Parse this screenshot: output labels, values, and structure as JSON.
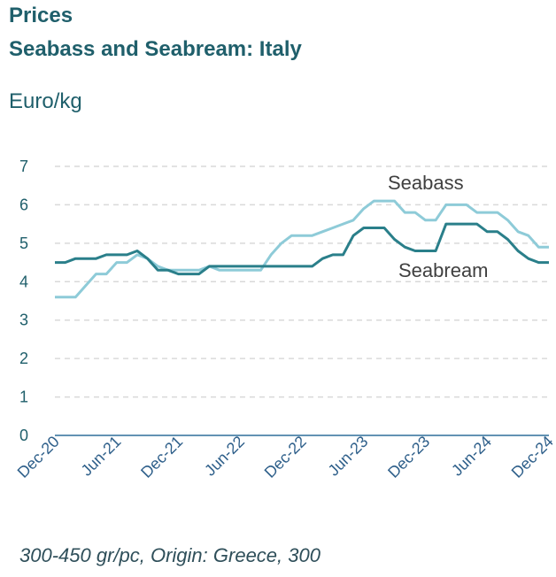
{
  "header": {
    "title_line1": "Prices",
    "title_line2": "Seabass and Seabream: Italy",
    "unit": "Euro/kg"
  },
  "footnote": "300-450 gr/pc, Origin: Greece, 300",
  "colors": {
    "seabass": "#8ecbd8",
    "seabream": "#2a7f8a",
    "axis": "#2e6f9a",
    "grid": "#d9d9d9",
    "title": "#1f5f6b"
  },
  "chart_data": {
    "type": "line",
    "ylim": [
      0,
      7
    ],
    "yticks": [
      "0",
      "1",
      "2",
      "3",
      "4",
      "5",
      "6",
      "7"
    ],
    "xtick_labels": [
      "Dec-20",
      "Jun-21",
      "Dec-21",
      "Jun-22",
      "Dec-22",
      "Jun-23",
      "Dec-23",
      "Jun-24",
      "Dec-24"
    ],
    "grid": true,
    "x": [
      "Dec-20",
      "Jan-21",
      "Feb-21",
      "Mar-21",
      "Apr-21",
      "May-21",
      "Jun-21",
      "Jul-21",
      "Aug-21",
      "Sep-21",
      "Oct-21",
      "Nov-21",
      "Dec-21",
      "Jan-22",
      "Feb-22",
      "Mar-22",
      "Apr-22",
      "May-22",
      "Jun-22",
      "Jul-22",
      "Aug-22",
      "Sep-22",
      "Oct-22",
      "Nov-22",
      "Dec-22",
      "Jan-23",
      "Feb-23",
      "Mar-23",
      "Apr-23",
      "May-23",
      "Jun-23",
      "Jul-23",
      "Aug-23",
      "Sep-23",
      "Oct-23",
      "Nov-23",
      "Dec-23",
      "Jan-24",
      "Feb-24",
      "Mar-24",
      "Apr-24",
      "May-24",
      "Jun-24",
      "Jul-24",
      "Aug-24",
      "Sep-24",
      "Oct-24",
      "Nov-24",
      "Dec-24"
    ],
    "series": [
      {
        "name": "Seabass",
        "values": [
          3.6,
          3.6,
          3.6,
          3.9,
          4.2,
          4.2,
          4.5,
          4.5,
          4.7,
          4.6,
          4.4,
          4.3,
          4.3,
          4.3,
          4.3,
          4.4,
          4.3,
          4.3,
          4.3,
          4.3,
          4.3,
          4.7,
          5.0,
          5.2,
          5.2,
          5.2,
          5.3,
          5.4,
          5.5,
          5.6,
          5.9,
          6.1,
          6.1,
          6.1,
          5.8,
          5.8,
          5.6,
          5.6,
          6.0,
          6.0,
          6.0,
          5.8,
          5.8,
          5.8,
          5.6,
          5.3,
          5.2,
          4.9,
          4.9
        ]
      },
      {
        "name": "Seabream",
        "values": [
          4.5,
          4.5,
          4.6,
          4.6,
          4.6,
          4.7,
          4.7,
          4.7,
          4.8,
          4.6,
          4.3,
          4.3,
          4.2,
          4.2,
          4.2,
          4.4,
          4.4,
          4.4,
          4.4,
          4.4,
          4.4,
          4.4,
          4.4,
          4.4,
          4.4,
          4.4,
          4.6,
          4.7,
          4.7,
          5.2,
          5.4,
          5.4,
          5.4,
          5.1,
          4.9,
          4.8,
          4.8,
          4.8,
          5.5,
          5.5,
          5.5,
          5.5,
          5.3,
          5.3,
          5.1,
          4.8,
          4.6,
          4.5,
          4.5
        ]
      }
    ]
  }
}
